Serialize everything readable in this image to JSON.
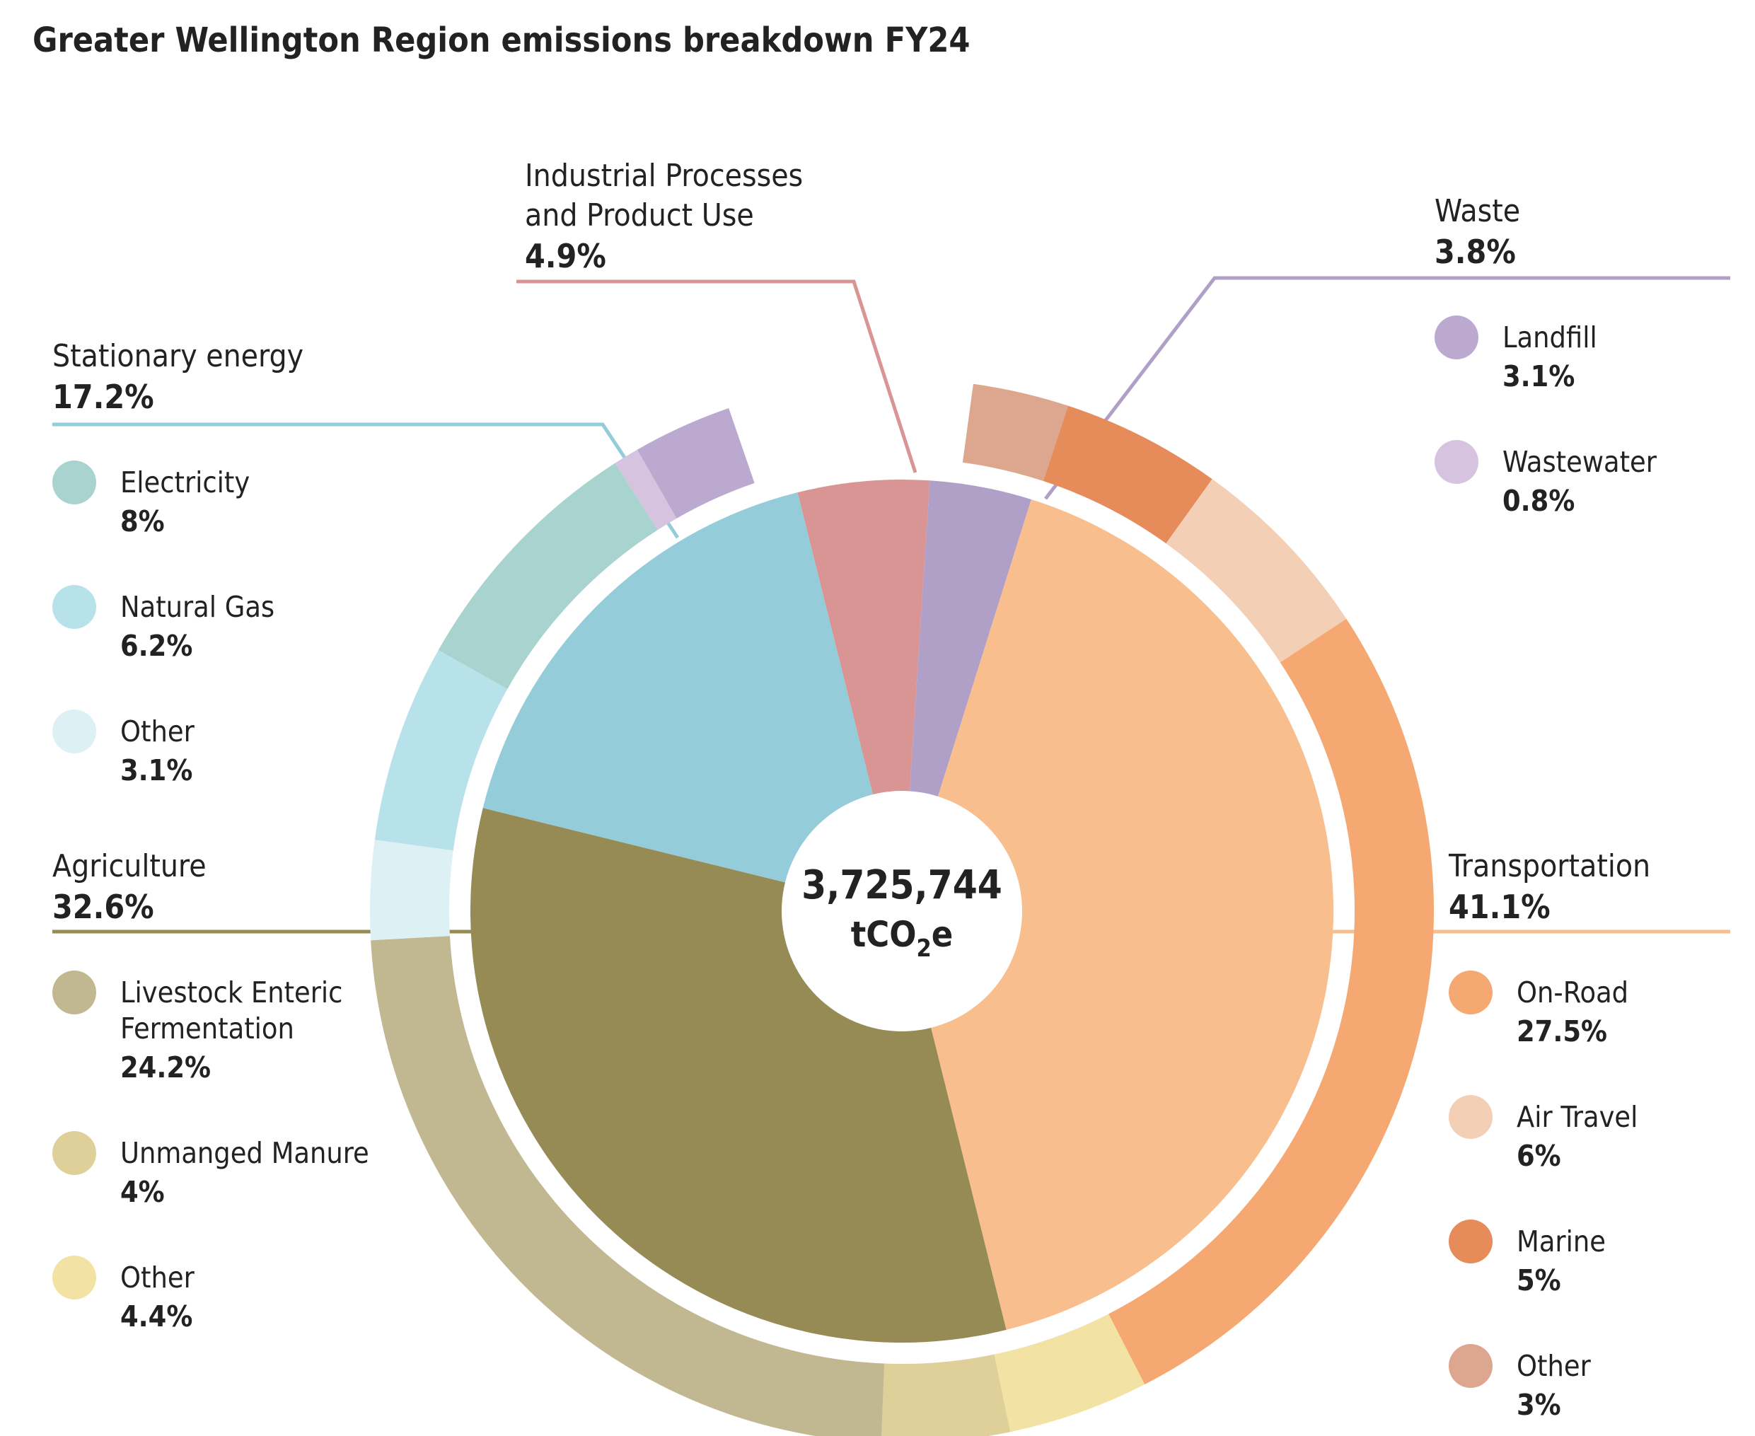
{
  "chart_data": {
    "type": "pie",
    "title": "Greater Wellington Region emissions breakdown FY24",
    "total": {
      "value": "3,725,744",
      "unit_prefix": "tCO",
      "unit_sub": "2",
      "unit_suffix": "e"
    },
    "groups": [
      {
        "key": "industrial",
        "name_lines": [
          "Industrial Processes",
          "and Product Use"
        ],
        "value": 4.9,
        "label": "4.9%",
        "color": "#d99494",
        "subs": []
      },
      {
        "key": "waste",
        "name_lines": [
          "Waste"
        ],
        "value": 3.8,
        "label": "3.8%",
        "color": "#b0a0c8",
        "subs": [
          {
            "name_lines": [
              "Landfill"
            ],
            "value": 3.1,
            "label": "3.1%",
            "color": "#bca9d0"
          },
          {
            "name_lines": [
              "Wastewater"
            ],
            "value": 0.8,
            "label": "0.8%",
            "color": "#d5c3e0"
          }
        ]
      },
      {
        "key": "transport",
        "name_lines": [
          "Transportation"
        ],
        "value": 41.1,
        "label": "41.1%",
        "color": "#f9be8e",
        "subs": [
          {
            "name_lines": [
              "On-Road"
            ],
            "value": 27.5,
            "label": "27.5%",
            "color": "#f5a872"
          },
          {
            "name_lines": [
              "Air Travel"
            ],
            "value": 6,
            "label": "6%",
            "color": "#f3cfb6"
          },
          {
            "name_lines": [
              "Marine"
            ],
            "value": 5,
            "label": "5%",
            "color": "#e58c5a"
          },
          {
            "name_lines": [
              "Other"
            ],
            "value": 3,
            "label": "3%",
            "color": "#dca78e"
          }
        ]
      },
      {
        "key": "agriculture",
        "name_lines": [
          "Agriculture"
        ],
        "value": 32.6,
        "label": "32.6%",
        "color": "#968b54",
        "subs": [
          {
            "name_lines": [
              "Livestock Enteric",
              "Fermentation"
            ],
            "value": 24.2,
            "label": "24.2%",
            "color": "#c1b791"
          },
          {
            "name_lines": [
              "Unmanged Manure"
            ],
            "value": 4,
            "label": "4%",
            "color": "#dfd09a"
          },
          {
            "name_lines": [
              "Other"
            ],
            "value": 4.4,
            "label": "4.4%",
            "color": "#f2e3a5"
          }
        ]
      },
      {
        "key": "stationary",
        "name_lines": [
          "Stationary energy"
        ],
        "value": 17.2,
        "label": "17.2%",
        "color": "#94ccda",
        "subs": [
          {
            "name_lines": [
              "Electricity"
            ],
            "value": 8,
            "label": "8%",
            "color": "#a8d3cf"
          },
          {
            "name_lines": [
              "Natural Gas"
            ],
            "value": 6.2,
            "label": "6.2%",
            "color": "#b8e2ea"
          },
          {
            "name_lines": [
              "Other"
            ],
            "value": 3.1,
            "label": "3.1%",
            "color": "#ddf0f4"
          }
        ]
      }
    ],
    "outer_ring_order": [
      [
        "transport",
        3
      ],
      [
        "transport",
        2
      ],
      [
        "transport",
        1
      ],
      [
        "transport",
        0
      ],
      [
        "agriculture",
        2
      ],
      [
        "agriculture",
        1
      ],
      [
        "agriculture",
        0
      ],
      [
        "stationary",
        2
      ],
      [
        "stationary",
        1
      ],
      [
        "stationary",
        0
      ],
      [
        "waste",
        1
      ],
      [
        "waste",
        0
      ]
    ],
    "legend_placement": "around"
  }
}
